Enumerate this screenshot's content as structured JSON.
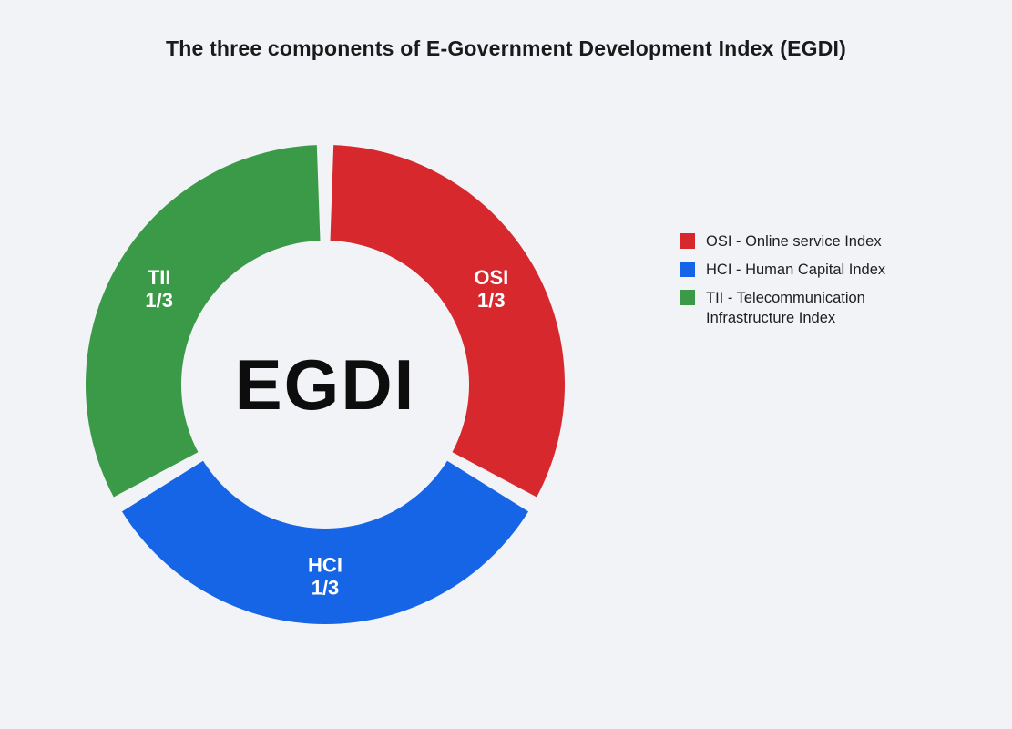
{
  "title": "The three components of E-Government Development Index (EGDI)",
  "colors": {
    "background": "#f2f3f7",
    "osi_red": "#d7282e",
    "hci_blue": "#1565e6",
    "tii_green": "#3b9a47"
  },
  "chart_data": {
    "type": "pie",
    "subtype": "donut",
    "title": "The three components of E-Government Development Index (EGDI)",
    "center_label": "EGDI",
    "categories": [
      "OSI",
      "HCI",
      "TII"
    ],
    "values": [
      33.33,
      33.33,
      33.33
    ],
    "value_labels": [
      "1/3",
      "1/3",
      "1/3"
    ],
    "legend_position": "right",
    "gap_degrees": 4,
    "segments": [
      {
        "abbr": "OSI",
        "value_label": "1/3",
        "color": "#d7282e",
        "start_deg": 2,
        "end_deg": 118
      },
      {
        "abbr": "HCI",
        "value_label": "1/3",
        "color": "#1565e6",
        "start_deg": 122,
        "end_deg": 238
      },
      {
        "abbr": "TII",
        "value_label": "1/3",
        "color": "#3b9a47",
        "start_deg": 242,
        "end_deg": 358
      }
    ],
    "legend": [
      {
        "label": "OSI - Online service Index",
        "color": "#d7282e"
      },
      {
        "label": "HCI - Human Capital Index",
        "color": "#1565e6"
      },
      {
        "label": "TII - Telecommunication Infrastructure Index",
        "color": "#3b9a47"
      }
    ]
  }
}
